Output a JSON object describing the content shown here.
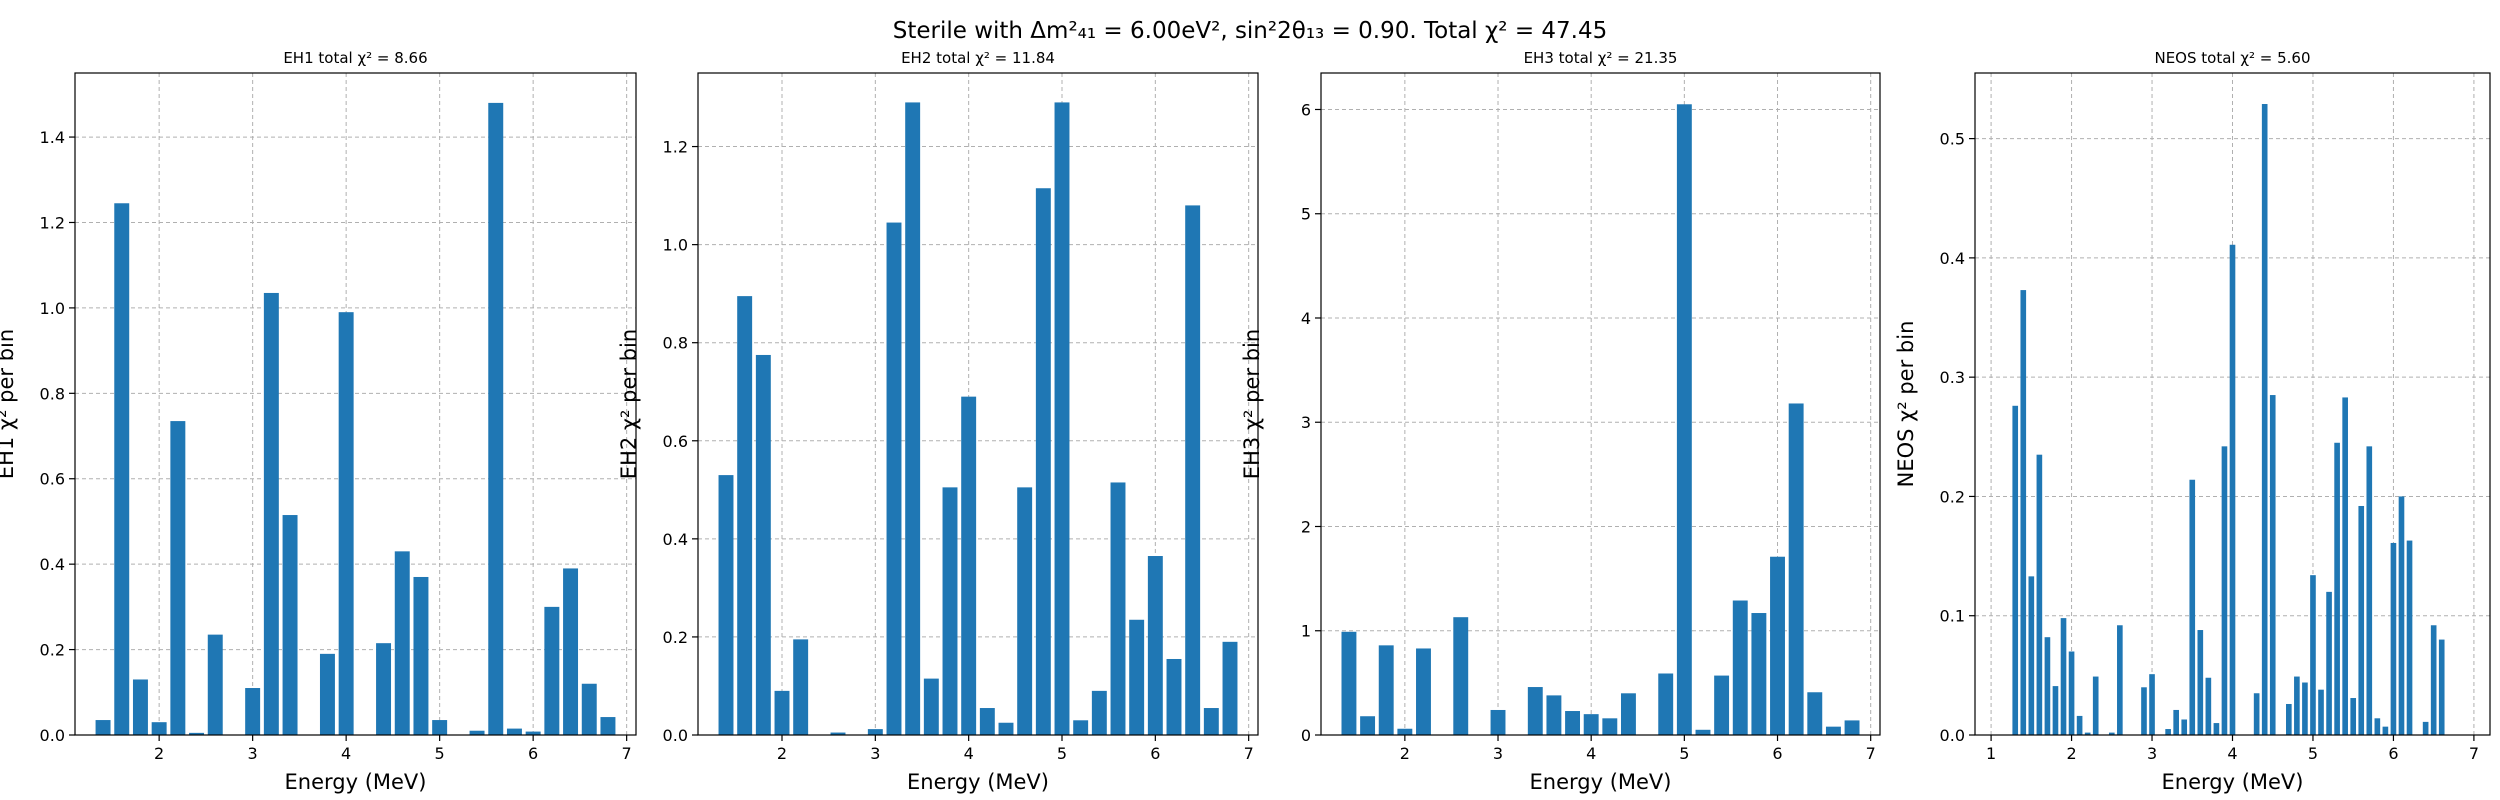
{
  "figure": {
    "suptitle": "Sterile with Δm²₄₁ = 6.00eV², sin²2θ₁₃ = 0.90. Total χ² = 47.45"
  },
  "chart_data": [
    {
      "type": "bar",
      "title": "EH1 total χ² = 8.66",
      "xlabel": "Energy (MeV)",
      "ylabel": "EH1 χ² per bin",
      "xlim": [
        1.1,
        7.1
      ],
      "ylim": [
        0,
        1.55
      ],
      "xticks": [
        2,
        3,
        4,
        5,
        6,
        7
      ],
      "yticks": [
        0.0,
        0.2,
        0.4,
        0.6,
        0.8,
        1.0,
        1.2,
        1.4
      ],
      "ytick_labels": [
        "0.0",
        "0.2",
        "0.4",
        "0.6",
        "0.8",
        "1.0",
        "1.2",
        "1.4"
      ],
      "grid": true,
      "bin_width": 0.16,
      "x": [
        1.4,
        1.6,
        1.8,
        2.0,
        2.2,
        2.4,
        2.6,
        2.8,
        3.0,
        3.2,
        3.4,
        3.6,
        3.8,
        4.0,
        4.2,
        4.4,
        4.6,
        4.8,
        5.0,
        5.2,
        5.4,
        5.6,
        5.8,
        6.0,
        6.2,
        6.4,
        6.6,
        6.8
      ],
      "values": [
        0.035,
        1.245,
        0.13,
        0.03,
        0.735,
        0.005,
        0.235,
        0.0,
        0.11,
        1.035,
        0.515,
        0.0,
        0.19,
        0.99,
        0.0,
        0.215,
        0.43,
        0.37,
        0.035,
        0.0,
        0.01,
        1.48,
        0.015,
        0.008,
        0.3,
        0.39,
        0.12,
        0.042
      ]
    },
    {
      "type": "bar",
      "title": "EH2 total χ² = 11.84",
      "xlabel": "Energy (MeV)",
      "ylabel": "EH2 χ² per bin",
      "xlim": [
        1.1,
        7.1
      ],
      "ylim": [
        0,
        1.35
      ],
      "xticks": [
        2,
        3,
        4,
        5,
        6,
        7
      ],
      "yticks": [
        0.0,
        0.2,
        0.4,
        0.6,
        0.8,
        1.0,
        1.2
      ],
      "ytick_labels": [
        "0.0",
        "0.2",
        "0.4",
        "0.6",
        "0.8",
        "1.0",
        "1.2"
      ],
      "grid": true,
      "bin_width": 0.16,
      "x": [
        1.4,
        1.6,
        1.8,
        2.0,
        2.2,
        2.4,
        2.6,
        2.8,
        3.0,
        3.2,
        3.4,
        3.6,
        3.8,
        4.0,
        4.2,
        4.4,
        4.6,
        4.8,
        5.0,
        5.2,
        5.4,
        5.6,
        5.8,
        6.0,
        6.2,
        6.4,
        6.6,
        6.8
      ],
      "values": [
        0.53,
        0.895,
        0.775,
        0.09,
        0.195,
        0.0,
        0.005,
        0.0,
        0.012,
        1.045,
        1.29,
        0.115,
        0.505,
        0.69,
        0.055,
        0.025,
        0.505,
        1.115,
        1.29,
        0.03,
        0.09,
        0.515,
        0.235,
        0.365,
        0.155,
        1.08,
        0.055,
        0.19
      ]
    },
    {
      "type": "bar",
      "title": "EH3 total χ² = 21.35",
      "xlabel": "Energy (MeV)",
      "ylabel": "EH3 χ² per bin",
      "xlim": [
        1.1,
        7.1
      ],
      "ylim": [
        0,
        6.35
      ],
      "xticks": [
        2,
        3,
        4,
        5,
        6,
        7
      ],
      "yticks": [
        0,
        1,
        2,
        3,
        4,
        5,
        6
      ],
      "ytick_labels": [
        "0",
        "1",
        "2",
        "3",
        "4",
        "5",
        "6"
      ],
      "grid": true,
      "bin_width": 0.16,
      "x": [
        1.4,
        1.6,
        1.8,
        2.0,
        2.2,
        2.4,
        2.6,
        2.8,
        3.0,
        3.2,
        3.4,
        3.6,
        3.8,
        4.0,
        4.2,
        4.4,
        4.6,
        4.8,
        5.0,
        5.2,
        5.4,
        5.6,
        5.8,
        6.0,
        6.2,
        6.4,
        6.6,
        6.8
      ],
      "values": [
        0.99,
        0.18,
        0.86,
        0.06,
        0.83,
        0.0,
        1.13,
        0.0,
        0.24,
        0.0,
        0.46,
        0.38,
        0.23,
        0.2,
        0.16,
        0.4,
        0.0,
        0.59,
        6.05,
        0.05,
        0.57,
        1.29,
        1.17,
        1.71,
        3.18,
        0.41,
        0.08,
        0.14
      ]
    },
    {
      "type": "bar",
      "title": "NEOS total χ² = 5.60",
      "xlabel": "Energy (MeV)",
      "ylabel": "NEOS χ² per bin",
      "xlim": [
        0.8,
        7.2
      ],
      "ylim": [
        0,
        0.555
      ],
      "xticks": [
        1,
        2,
        3,
        4,
        5,
        6,
        7
      ],
      "yticks": [
        0.0,
        0.1,
        0.2,
        0.3,
        0.4,
        0.5
      ],
      "ytick_labels": [
        "0.0",
        "0.1",
        "0.2",
        "0.3",
        "0.4",
        "0.5"
      ],
      "grid": true,
      "bin_width": 0.07,
      "x": [
        1.3,
        1.4,
        1.5,
        1.6,
        1.7,
        1.8,
        1.9,
        2.0,
        2.1,
        2.2,
        2.3,
        2.4,
        2.5,
        2.6,
        2.7,
        2.8,
        2.9,
        3.0,
        3.1,
        3.2,
        3.3,
        3.4,
        3.5,
        3.6,
        3.7,
        3.8,
        3.9,
        4.0,
        4.1,
        4.2,
        4.3,
        4.4,
        4.5,
        4.6,
        4.7,
        4.8,
        4.9,
        5.0,
        5.1,
        5.2,
        5.3,
        5.4,
        5.5,
        5.6,
        5.7,
        5.8,
        5.9,
        6.0,
        6.1,
        6.2,
        6.3,
        6.4,
        6.5,
        6.6,
        6.7,
        6.8,
        6.9
      ],
      "values": [
        0.276,
        0.373,
        0.133,
        0.235,
        0.082,
        0.041,
        0.098,
        0.07,
        0.016,
        0.002,
        0.049,
        0.0,
        0.002,
        0.092,
        0.0,
        0.0,
        0.04,
        0.051,
        0.0,
        0.005,
        0.021,
        0.013,
        0.214,
        0.088,
        0.048,
        0.01,
        0.242,
        0.411,
        0.0,
        0.0,
        0.035,
        0.529,
        0.285,
        0.0,
        0.026,
        0.049,
        0.044,
        0.134,
        0.038,
        0.12,
        0.245,
        0.283,
        0.031,
        0.192,
        0.242,
        0.014,
        0.007,
        0.161,
        0.2,
        0.163,
        0.0,
        0.011,
        0.092,
        0.08,
        0.0,
        0.0,
        0.0
      ]
    }
  ]
}
